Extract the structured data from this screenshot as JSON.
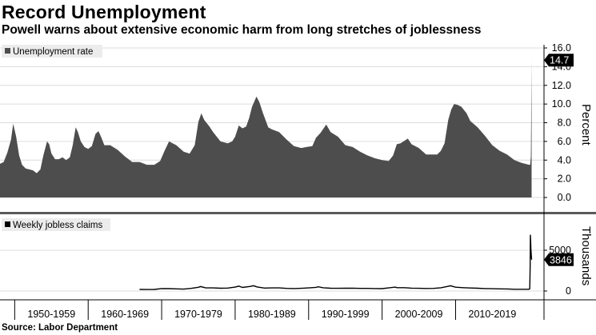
{
  "title": "Record Unemployment",
  "subtitle": "Powell warns about extensive economic harm from long stretches of joblessness",
  "source": "Source: Labor Department",
  "colors": {
    "fill": "#4d4d4d",
    "grid": "#dcdcdc",
    "axis": "#000000",
    "callout_bg": "#000000"
  },
  "chart_data": [
    {
      "type": "area",
      "legend": "Unemployment rate",
      "ylabel": "Percent",
      "ylim": [
        0,
        16
      ],
      "yticks": [
        "0.0",
        "2.0",
        "4.0",
        "6.0",
        "8.0",
        "10.0",
        "12.0",
        "14.0",
        "16.0"
      ],
      "xlim": [
        1948.0,
        2020.4
      ],
      "callout": "14.7",
      "x": [
        1948.0,
        1948.5,
        1949.0,
        1949.5,
        1949.8,
        1950.2,
        1950.6,
        1951.0,
        1951.5,
        1952.0,
        1952.5,
        1953.0,
        1953.5,
        1953.9,
        1954.4,
        1954.7,
        1955.0,
        1955.5,
        1956.0,
        1956.5,
        1957.0,
        1957.5,
        1957.9,
        1958.3,
        1958.6,
        1959.0,
        1959.5,
        1960.0,
        1960.5,
        1961.0,
        1961.4,
        1961.8,
        1962.2,
        1963.0,
        1964.0,
        1965.0,
        1966.0,
        1967.0,
        1968.0,
        1969.0,
        1969.8,
        1970.4,
        1971.0,
        1972.0,
        1973.0,
        1973.8,
        1974.5,
        1975.0,
        1975.4,
        1975.8,
        1976.5,
        1977.0,
        1978.0,
        1979.0,
        1979.6,
        1980.0,
        1980.5,
        1981.0,
        1981.5,
        1981.9,
        1982.3,
        1982.9,
        1983.3,
        1983.8,
        1984.5,
        1985.0,
        1986.0,
        1987.0,
        1988.0,
        1989.0,
        1989.7,
        1990.5,
        1991.0,
        1991.6,
        1992.4,
        1993.0,
        1994.0,
        1995.0,
        1996.0,
        1997.0,
        1998.0,
        1999.0,
        2000.0,
        2000.9,
        2001.5,
        2002.0,
        2002.5,
        2003.5,
        2004.0,
        2005.0,
        2006.0,
        2007.0,
        2007.5,
        2008.0,
        2008.5,
        2009.0,
        2009.4,
        2009.8,
        2010.3,
        2010.8,
        2011.5,
        2012.0,
        2013.0,
        2014.0,
        2015.0,
        2016.0,
        2017.0,
        2018.0,
        2019.0,
        2020.0,
        2020.15,
        2020.25,
        2020.35
      ],
      "y": [
        3.6,
        3.8,
        4.8,
        6.2,
        7.9,
        6.5,
        4.5,
        3.5,
        3.1,
        3.0,
        2.9,
        2.6,
        3.0,
        4.5,
        6.0,
        5.7,
        4.7,
        4.1,
        4.1,
        4.3,
        4.0,
        4.3,
        5.6,
        7.5,
        7.0,
        6.0,
        5.4,
        5.2,
        5.5,
        6.8,
        7.1,
        6.4,
        5.6,
        5.6,
        5.1,
        4.4,
        3.8,
        3.8,
        3.5,
        3.5,
        3.9,
        5.0,
        6.0,
        5.6,
        4.9,
        4.7,
        5.6,
        8.1,
        9.0,
        8.3,
        7.6,
        7.0,
        6.0,
        5.8,
        6.0,
        6.5,
        7.7,
        7.4,
        7.6,
        8.5,
        9.7,
        10.8,
        10.2,
        9.0,
        7.5,
        7.3,
        7.0,
        6.2,
        5.5,
        5.3,
        5.4,
        5.5,
        6.4,
        6.9,
        7.8,
        7.0,
        6.5,
        5.6,
        5.4,
        4.9,
        4.5,
        4.2,
        4.0,
        3.9,
        4.5,
        5.7,
        5.8,
        6.3,
        5.7,
        5.3,
        4.6,
        4.6,
        4.6,
        5.0,
        5.8,
        8.3,
        9.4,
        10.0,
        9.9,
        9.7,
        9.0,
        8.2,
        7.5,
        6.6,
        5.6,
        5.0,
        4.6,
        4.0,
        3.7,
        3.5,
        3.5,
        4.4,
        14.7
      ]
    },
    {
      "type": "line",
      "legend": "Weekly jobless claims",
      "ylabel": "Thousands",
      "ylim": [
        -400,
        7200
      ],
      "yticks": [
        "0",
        "5000"
      ],
      "xlim": [
        1948.0,
        2020.4
      ],
      "callout": "3846",
      "xticks": [
        "1950-1959",
        "1960-1969",
        "1970-1979",
        "1980-1989",
        "1990-1999",
        "2000-2009",
        "2010-2019"
      ],
      "x": [
        1967.0,
        1968.0,
        1969.0,
        1970.0,
        1971.0,
        1972.0,
        1973.0,
        1974.0,
        1975.0,
        1975.3,
        1976.0,
        1977.0,
        1978.0,
        1979.0,
        1980.0,
        1980.5,
        1981.0,
        1982.0,
        1982.5,
        1983.0,
        1984.0,
        1985.0,
        1986.0,
        1987.0,
        1988.0,
        1989.0,
        1990.0,
        1991.0,
        1991.3,
        1992.0,
        1993.0,
        1994.0,
        1995.0,
        1996.0,
        1997.0,
        1998.0,
        1999.0,
        2000.0,
        2001.0,
        2001.8,
        2002.0,
        2003.0,
        2004.0,
        2005.0,
        2006.0,
        2007.0,
        2008.0,
        2009.0,
        2009.3,
        2010.0,
        2011.0,
        2012.0,
        2013.0,
        2014.0,
        2015.0,
        2016.0,
        2017.0,
        2018.0,
        2019.0,
        2020.0,
        2020.1,
        2020.15,
        2020.18,
        2020.22,
        2020.25,
        2020.3,
        2020.35
      ],
      "y": [
        200,
        190,
        200,
        300,
        290,
        260,
        240,
        320,
        460,
        550,
        380,
        380,
        340,
        360,
        480,
        600,
        440,
        560,
        650,
        500,
        360,
        380,
        380,
        320,
        300,
        330,
        380,
        450,
        520,
        400,
        340,
        330,
        340,
        350,
        320,
        320,
        300,
        290,
        400,
        480,
        410,
        410,
        350,
        330,
        310,
        320,
        400,
        580,
        650,
        470,
        410,
        370,
        340,
        300,
        280,
        260,
        250,
        220,
        220,
        215,
        280,
        3000,
        6900,
        6200,
        5200,
        4400,
        3846
      ]
    }
  ]
}
